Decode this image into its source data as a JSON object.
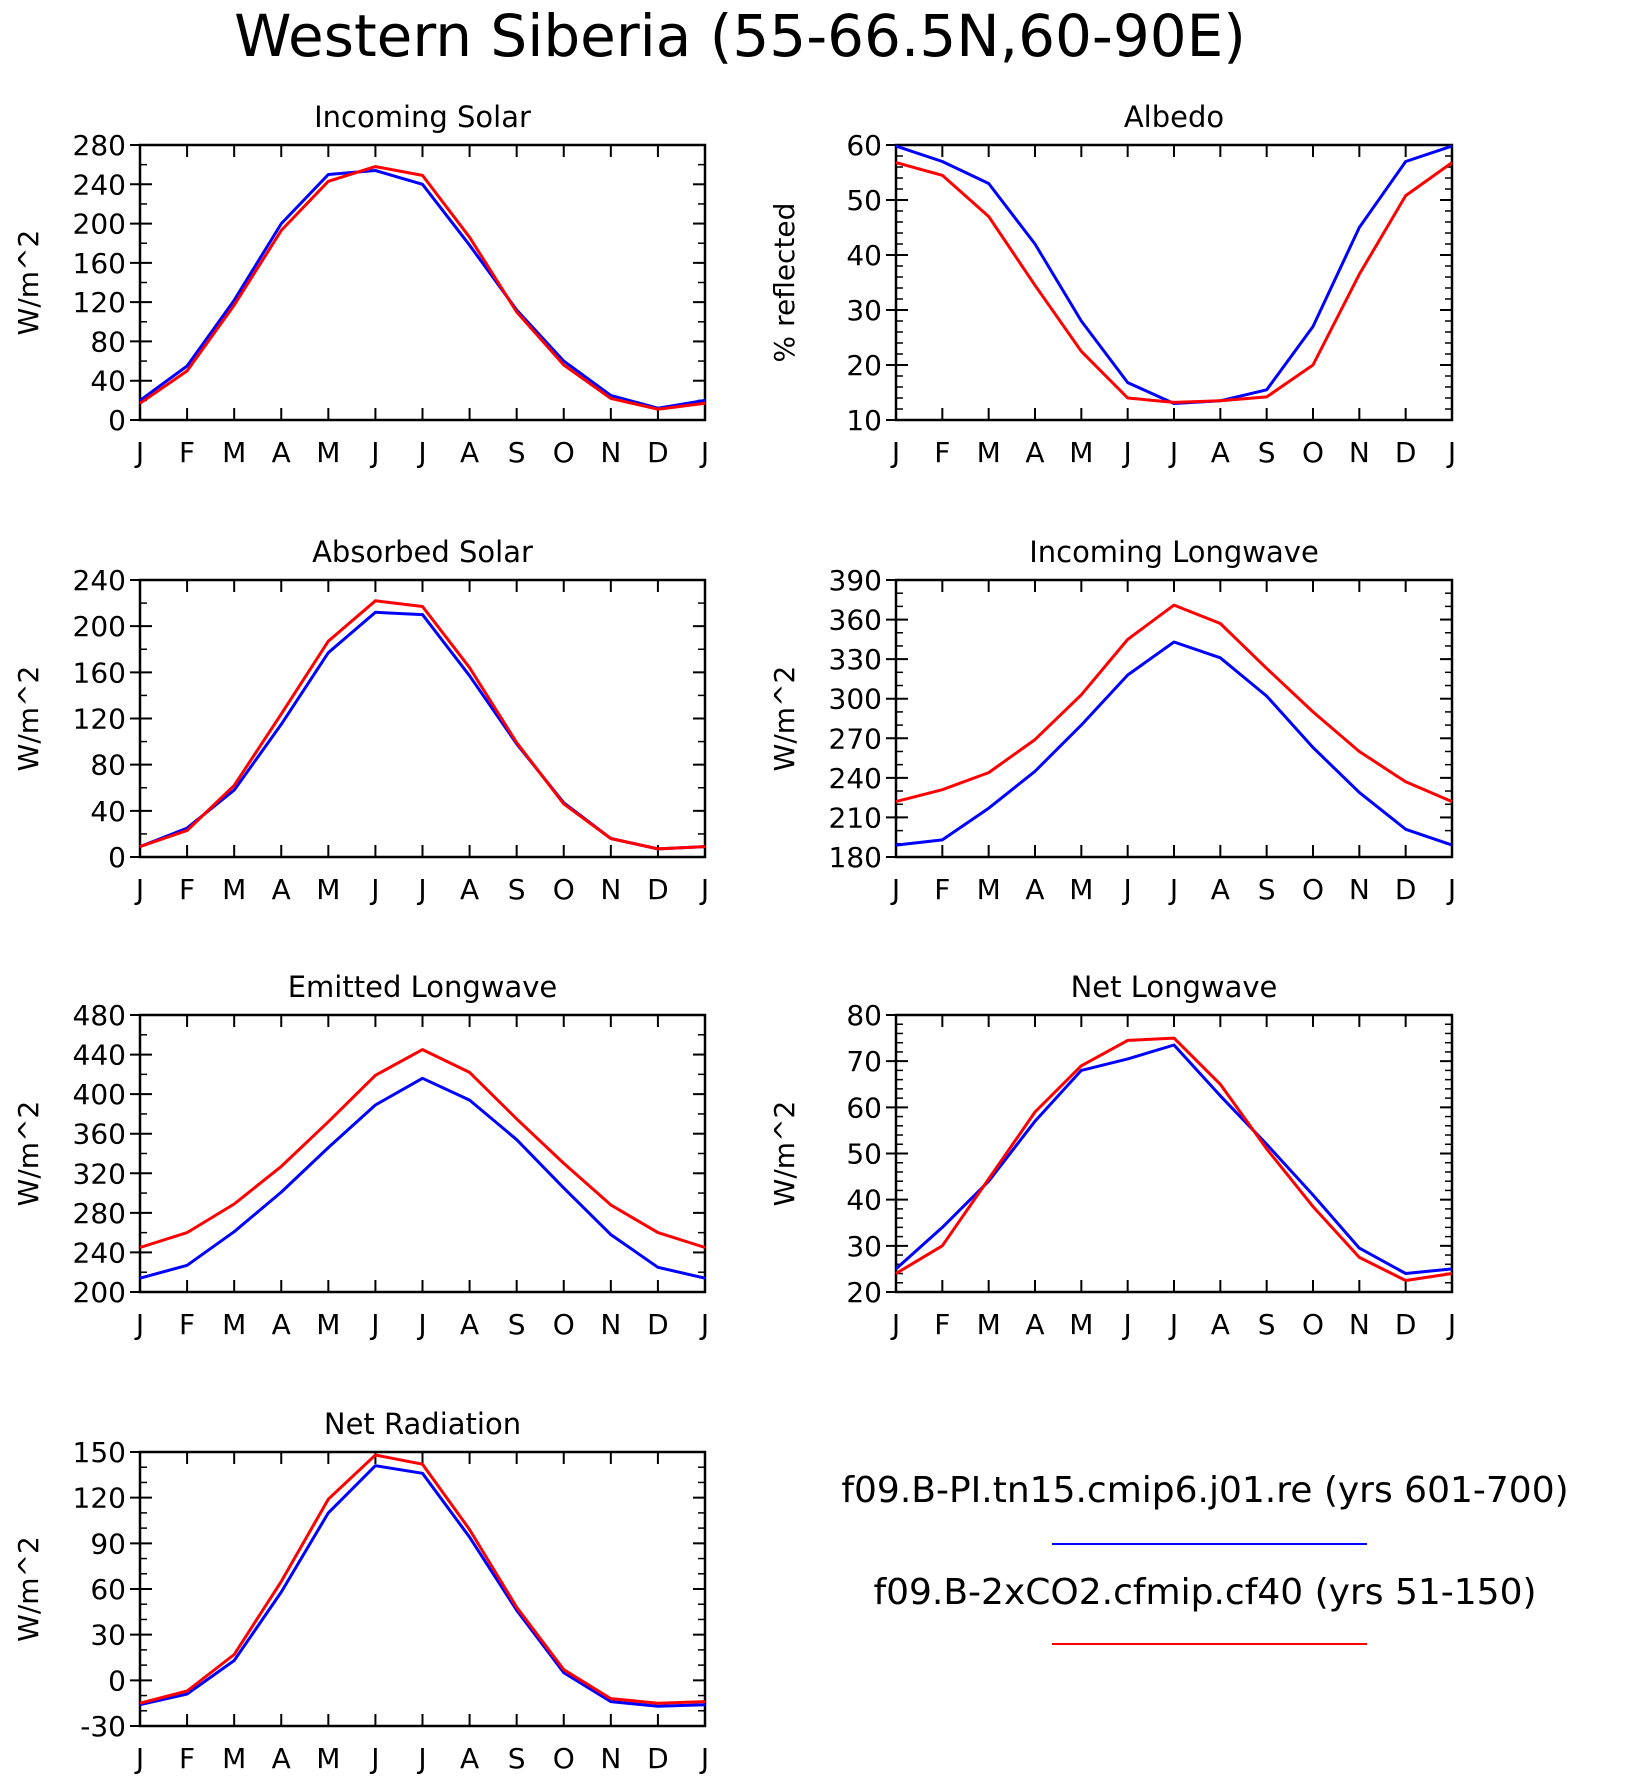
{
  "figure_title": "Western Siberia (55-66.5N,60-90E)",
  "legend": [
    {
      "label": "f09.B-PI.tn15.cmip6.j01.re (yrs 601-700)",
      "color": "#0000ff"
    },
    {
      "label": "f09.B-2xCO2.cfmip.cf40 (yrs 51-150)",
      "color": "#ff0000"
    }
  ],
  "colors": {
    "pi": "#0000ff",
    "co2": "#ff0000",
    "axis": "#000000"
  },
  "chart_data": [
    {
      "type": "line",
      "title": "Incoming Solar",
      "ylabel": "W/m^2",
      "x": [
        "J",
        "F",
        "M",
        "A",
        "M",
        "J",
        "J",
        "A",
        "S",
        "O",
        "N",
        "D",
        "J"
      ],
      "ylim": [
        0,
        280
      ],
      "yticks": [
        0,
        40,
        80,
        120,
        160,
        200,
        240,
        280
      ],
      "yminor": 20,
      "series": [
        {
          "name": "f09.B-PI.tn15.cmip6.j01.re (yrs 601-700)",
          "values": [
            20,
            55,
            122,
            200,
            250,
            254,
            240,
            178,
            112,
            60,
            25,
            12,
            20
          ]
        },
        {
          "name": "f09.B-2xCO2.cfmip.cf40 (yrs 51-150)",
          "values": [
            17,
            50,
            117,
            193,
            243,
            258,
            249,
            186,
            110,
            56,
            22,
            11,
            17
          ]
        }
      ]
    },
    {
      "type": "line",
      "title": "Albedo",
      "ylabel": "% reflected",
      "x": [
        "J",
        "F",
        "M",
        "A",
        "M",
        "J",
        "J",
        "A",
        "S",
        "O",
        "N",
        "D",
        "J"
      ],
      "ylim": [
        10,
        60
      ],
      "yticks": [
        10,
        20,
        30,
        40,
        50,
        60
      ],
      "yminor": 2,
      "series": [
        {
          "name": "f09.B-PI.tn15.cmip6.j01.re (yrs 601-700)",
          "values": [
            59.8,
            57,
            53,
            42,
            28,
            16.8,
            13,
            13.5,
            15.5,
            27,
            45,
            57,
            59.8
          ]
        },
        {
          "name": "f09.B-2xCO2.cfmip.cf40 (yrs 51-150)",
          "values": [
            56.8,
            54.5,
            47,
            34.5,
            22.5,
            14,
            13.2,
            13.5,
            14.2,
            20,
            36.5,
            50.8,
            56.8
          ]
        }
      ]
    },
    {
      "type": "line",
      "title": "Absorbed Solar",
      "ylabel": "W/m^2",
      "x": [
        "J",
        "F",
        "M",
        "A",
        "M",
        "J",
        "J",
        "A",
        "S",
        "O",
        "N",
        "D",
        "J"
      ],
      "ylim": [
        0,
        240
      ],
      "yticks": [
        0,
        40,
        80,
        120,
        160,
        200,
        240
      ],
      "yminor": 20,
      "series": [
        {
          "name": "f09.B-PI.tn15.cmip6.j01.re (yrs 601-700)",
          "values": [
            9,
            25,
            58,
            115,
            177,
            212,
            210,
            157,
            98,
            47,
            16,
            7,
            9
          ]
        },
        {
          "name": "f09.B-2xCO2.cfmip.cf40 (yrs 51-150)",
          "values": [
            9,
            23,
            62,
            124,
            187,
            222,
            217,
            164,
            99,
            46,
            16,
            7,
            9
          ]
        }
      ]
    },
    {
      "type": "line",
      "title": "Incoming Longwave",
      "ylabel": "W/m^2",
      "x": [
        "J",
        "F",
        "M",
        "A",
        "M",
        "J",
        "J",
        "A",
        "S",
        "O",
        "N",
        "D",
        "J"
      ],
      "ylim": [
        180,
        390
      ],
      "yticks": [
        180,
        210,
        240,
        270,
        300,
        330,
        360,
        390
      ],
      "yminor": 10,
      "series": [
        {
          "name": "f09.B-PI.tn15.cmip6.j01.re (yrs 601-700)",
          "values": [
            189,
            193,
            217,
            245,
            280,
            318,
            343,
            331,
            302,
            263,
            229,
            201,
            189
          ]
        },
        {
          "name": "f09.B-2xCO2.cfmip.cf40 (yrs 51-150)",
          "values": [
            222,
            231,
            244,
            269,
            303,
            345,
            371,
            357,
            323,
            290,
            260,
            237,
            222
          ]
        }
      ]
    },
    {
      "type": "line",
      "title": "Emitted Longwave",
      "ylabel": "W/m^2",
      "x": [
        "J",
        "F",
        "M",
        "A",
        "M",
        "J",
        "J",
        "A",
        "S",
        "O",
        "N",
        "D",
        "J"
      ],
      "ylim": [
        200,
        480
      ],
      "yticks": [
        200,
        240,
        280,
        320,
        360,
        400,
        440,
        480
      ],
      "yminor": 20,
      "series": [
        {
          "name": "f09.B-PI.tn15.cmip6.j01.re (yrs 601-700)",
          "values": [
            214,
            227,
            261,
            301,
            346,
            389,
            416,
            394,
            354,
            305,
            258,
            225,
            214
          ]
        },
        {
          "name": "f09.B-2xCO2.cfmip.cf40 (yrs 51-150)",
          "values": [
            245,
            260,
            289,
            327,
            372,
            419,
            445,
            422,
            375,
            330,
            288,
            260,
            245
          ]
        }
      ]
    },
    {
      "type": "line",
      "title": "Net Longwave",
      "ylabel": "W/m^2",
      "x": [
        "J",
        "F",
        "M",
        "A",
        "M",
        "J",
        "J",
        "A",
        "S",
        "O",
        "N",
        "D",
        "J"
      ],
      "ylim": [
        20,
        80
      ],
      "yticks": [
        20,
        30,
        40,
        50,
        60,
        70,
        80
      ],
      "yminor": 2,
      "series": [
        {
          "name": "f09.B-PI.tn15.cmip6.j01.re (yrs 601-700)",
          "values": [
            25,
            34,
            44,
            57,
            68,
            70.5,
            73.5,
            62.5,
            52,
            41,
            29.5,
            24,
            25
          ]
        },
        {
          "name": "f09.B-2xCO2.cfmip.cf40 (yrs 51-150)",
          "values": [
            24,
            30,
            44.5,
            59,
            69,
            74.5,
            75,
            65,
            51,
            38.5,
            27.5,
            22.5,
            24
          ]
        }
      ]
    },
    {
      "type": "line",
      "title": "Net Radiation",
      "ylabel": "W/m^2",
      "x": [
        "J",
        "F",
        "M",
        "A",
        "M",
        "J",
        "J",
        "A",
        "S",
        "O",
        "N",
        "D",
        "J"
      ],
      "ylim": [
        -30,
        150
      ],
      "yticks": [
        -30,
        0,
        30,
        60,
        90,
        120,
        150
      ],
      "yminor": 10,
      "series": [
        {
          "name": "f09.B-PI.tn15.cmip6.j01.re (yrs 601-700)",
          "values": [
            -16,
            -9,
            13,
            58,
            110,
            141,
            136,
            94,
            46,
            5,
            -14,
            -17,
            -16
          ]
        },
        {
          "name": "f09.B-2xCO2.cfmip.cf40 (yrs 51-150)",
          "values": [
            -15,
            -7,
            17,
            65,
            119,
            148,
            142,
            99,
            48,
            7,
            -12,
            -15,
            -14
          ]
        }
      ]
    }
  ]
}
